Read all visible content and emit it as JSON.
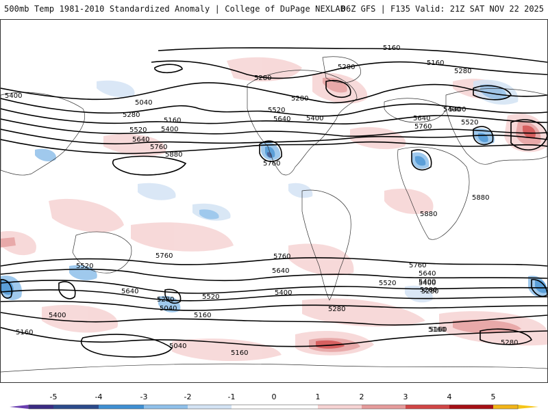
{
  "header": {
    "title": "500mb Temp 1981-2010 Standardized Anomaly | College of DuPage NEXLAB",
    "run_info": "06Z GFS | F135 Valid: 21Z SAT NOV 22 2025"
  },
  "contour_labels": [
    "5160",
    "5280",
    "5160",
    "5280",
    "5400",
    "5040",
    "5280",
    "5160",
    "5520",
    "5400",
    "5640",
    "5760",
    "5880",
    "5280",
    "5520",
    "5640",
    "5400",
    "5760",
    "5400",
    "5640",
    "5760",
    "5520",
    "5280",
    "5400",
    "5880",
    "5880",
    "5520",
    "5760",
    "5640",
    "5520",
    "5400",
    "5280",
    "5040",
    "5160",
    "5280",
    "5760",
    "5640",
    "5400",
    "5280",
    "5160",
    "5400",
    "5160",
    "5040",
    "5160",
    "5760",
    "5640",
    "5520",
    "5400",
    "5280",
    "5160",
    "5280"
  ],
  "colorbar": {
    "ticks": [
      "-5",
      "-4",
      "-3",
      "-2",
      "-1",
      "0",
      "1",
      "2",
      "3",
      "4",
      "5"
    ],
    "colors": {
      "bin_n5": "#3b2c83",
      "bin_n4": "#2b4a8b",
      "bin_n3": "#3f8fd2",
      "bin_n2": "#8fc0ea",
      "bin_n1": "#d3e3f4",
      "bin_0n": "#ffffff",
      "bin_0p": "#ffffff",
      "bin_p1": "#f6d3d3",
      "bin_p2": "#e59b9b",
      "bin_p3": "#d04545",
      "bin_p4": "#a50f15",
      "bin_p5": "#f2b417",
      "end_left": "#6a3fb0",
      "end_right": "#f5c518"
    }
  }
}
